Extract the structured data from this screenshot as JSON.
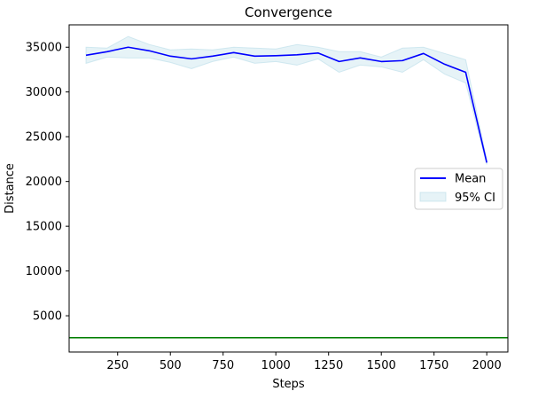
{
  "chart_data": {
    "type": "line",
    "title": "Convergence",
    "xlabel": "Steps",
    "ylabel": "Distance",
    "xlim": [
      20,
      2100
    ],
    "ylim": [
      950,
      37500
    ],
    "xticks": [
      250,
      500,
      750,
      1000,
      1250,
      1500,
      1750,
      2000
    ],
    "yticks": [
      5000,
      10000,
      15000,
      20000,
      25000,
      30000,
      35000
    ],
    "grid": false,
    "legend_position": "center-right",
    "x": [
      100,
      200,
      300,
      400,
      500,
      600,
      700,
      800,
      900,
      1000,
      1100,
      1200,
      1300,
      1400,
      1500,
      1600,
      1700,
      1800,
      1900,
      2000
    ],
    "series": [
      {
        "name": "Mean",
        "kind": "line",
        "color": "#0000ff",
        "values": [
          34100,
          34500,
          35000,
          34600,
          34000,
          33700,
          34000,
          34400,
          34000,
          34050,
          34150,
          34350,
          33400,
          33800,
          33400,
          33500,
          34300,
          33100,
          32200,
          22100
        ]
      },
      {
        "name": "95% CI",
        "kind": "band",
        "color": "#add8e6",
        "lower": [
          33200,
          33900,
          33800,
          33800,
          33300,
          32600,
          33400,
          33900,
          33200,
          33400,
          33000,
          33700,
          32200,
          33000,
          32800,
          32200,
          33600,
          32000,
          31000,
          21900
        ],
        "upper": [
          35000,
          34900,
          36200,
          35300,
          34700,
          34800,
          34700,
          35000,
          34900,
          34800,
          35300,
          35000,
          34500,
          34500,
          33900,
          34900,
          35000,
          34300,
          33600,
          22400
        ]
      }
    ],
    "reference_lines": [
      {
        "y": 2550,
        "color": "#008000"
      }
    ]
  }
}
